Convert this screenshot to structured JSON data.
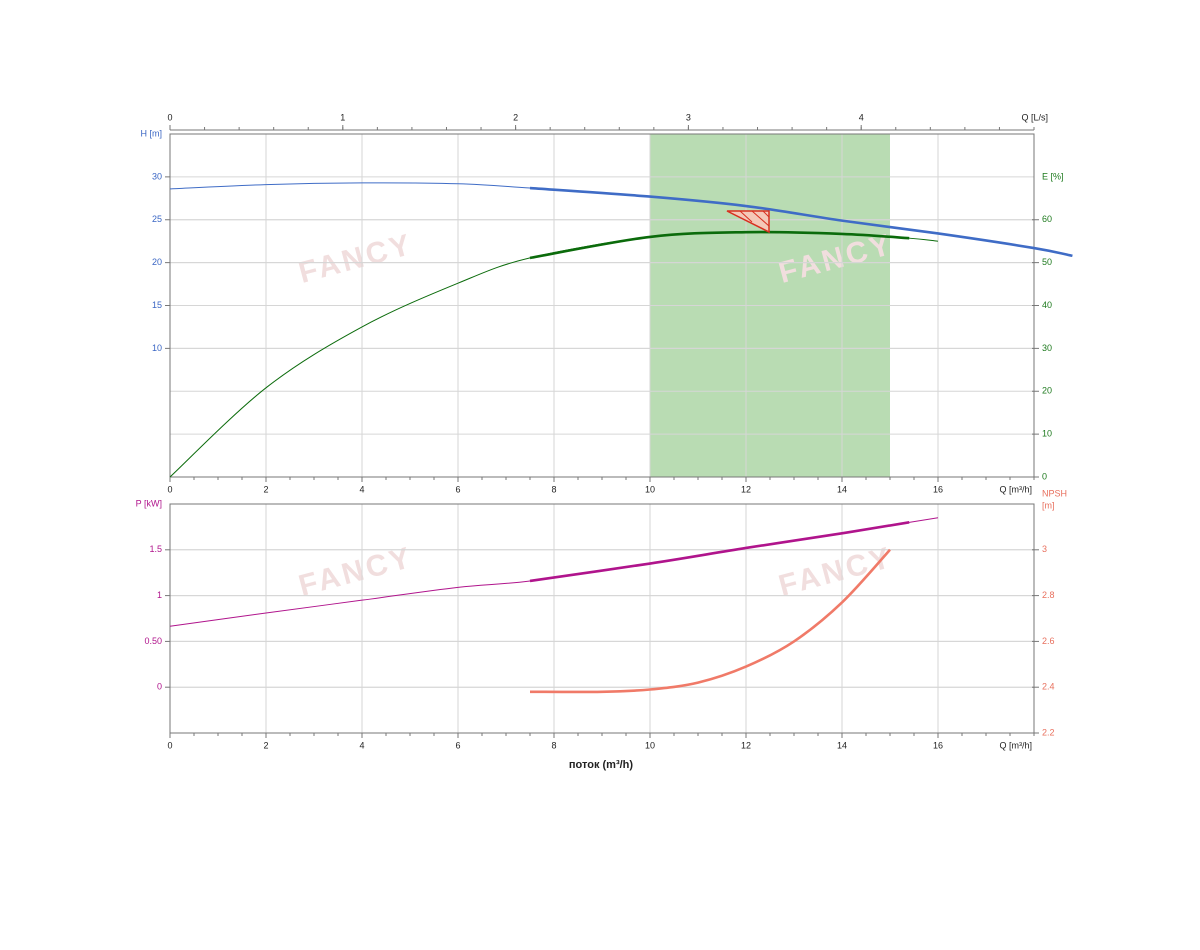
{
  "chart_data": [
    {
      "type": "line",
      "x_label": "Q [m³/h]",
      "x2_label": "Q [L/s]",
      "y_label": "H [m]",
      "y2_label": "E [%]",
      "xlim": [
        0,
        18
      ],
      "xticks": [
        0,
        2,
        4,
        6,
        8,
        10,
        12,
        14,
        16
      ],
      "minor_ticks": 4,
      "x2lim": [
        0,
        5
      ],
      "x2ticks": [
        0,
        1,
        2,
        3,
        4
      ],
      "ylim": [
        -5,
        35
      ],
      "yticks": [
        10,
        15,
        20,
        25,
        30
      ],
      "y_color": "#3a66c4",
      "y2lim": [
        0,
        80
      ],
      "y2ticks": [
        0,
        10,
        20,
        30,
        40,
        50,
        60
      ],
      "y2_color": "#1e7a1e",
      "grid": true,
      "shaded_range": [
        10,
        15
      ],
      "shade_color": "#b9dcb3",
      "watermark": "FANCY",
      "series": [
        {
          "color": "#3f6cc6",
          "axis": "y",
          "thick_range": [
            7.5,
            18.8
          ],
          "x": [
            0,
            2,
            4,
            6,
            7.5,
            10,
            12,
            14,
            16,
            18,
            18.8
          ],
          "values": [
            28.6,
            29.1,
            29.3,
            29.2,
            28.7,
            27.7,
            26.6,
            24.9,
            23.4,
            21.7,
            20.8
          ]
        },
        {
          "color": "#0b6b0b",
          "axis": "y2",
          "thick_range": [
            7.5,
            15.4
          ],
          "x": [
            0,
            2,
            4,
            6,
            7.5,
            10,
            12,
            14,
            15.4,
            16
          ],
          "values": [
            0,
            20.8,
            35,
            45.2,
            51.1,
            56,
            57.1,
            56.7,
            55.7,
            55
          ]
        }
      ]
    },
    {
      "type": "line",
      "x_label": "Q [m³/h]",
      "y_label": "P [kW]",
      "y2_label": "NPSH",
      "y2_unit": "[m]",
      "title": "поток (m³/h)",
      "xlim": [
        0,
        18
      ],
      "xticks": [
        0,
        2,
        4,
        6,
        8,
        10,
        12,
        14,
        16
      ],
      "minor_ticks": 4,
      "ylim": [
        -0.5,
        2
      ],
      "yticks": [
        0,
        {
          "value": 0.5,
          "label": "0.50"
        },
        1,
        1.5
      ],
      "y_color": "#b0148c",
      "y2lim": [
        2.2,
        3.2
      ],
      "y2ticks": [
        2.2,
        2.4,
        2.6,
        2.8,
        3
      ],
      "y2_color": "#e8705e",
      "grid": true,
      "watermark": "FANCY",
      "series": [
        {
          "color": "#b0148c",
          "axis": "y",
          "thick_range": [
            7.5,
            15.4
          ],
          "x": [
            0,
            2,
            4,
            6,
            7.5,
            10,
            12,
            14,
            15.4,
            16
          ],
          "values": [
            0.665,
            0.81,
            0.95,
            1.09,
            1.16,
            1.35,
            1.52,
            1.68,
            1.8,
            1.85
          ]
        },
        {
          "color": "#f07a68",
          "axis": "y2",
          "thick_range": [
            7.5,
            15
          ],
          "x": [
            7.5,
            9,
            10,
            11,
            12,
            13,
            14,
            15
          ],
          "values": [
            2.38,
            2.38,
            2.39,
            2.42,
            2.49,
            2.6,
            2.77,
            3
          ]
        }
      ]
    }
  ]
}
